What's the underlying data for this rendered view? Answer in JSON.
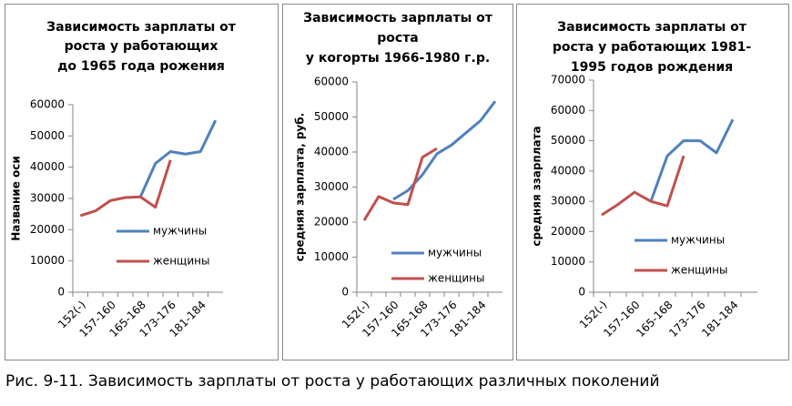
{
  "caption": "Рис. 9-11. Зависимость зарплаты от роста у работающих различных поколений",
  "chart_data": [
    {
      "type": "line",
      "title": [
        "Зависимость зарплаты от",
        "роста у работающих",
        "до 1965 года рожения"
      ],
      "y_label": "Название  оси",
      "categories": [
        "152(-)",
        null,
        "157-160",
        null,
        "165-168",
        null,
        "173-176",
        null,
        "181-184",
        null
      ],
      "series": [
        {
          "name": "мужчины",
          "color": "#4f81bd",
          "values": [
            null,
            null,
            null,
            null,
            30500,
            41200,
            45000,
            44200,
            45000,
            55000
          ]
        },
        {
          "name": "женщины",
          "color": "#c0504d",
          "values": [
            24500,
            26000,
            29300,
            30300,
            30500,
            27200,
            42300,
            null,
            null,
            null
          ]
        }
      ],
      "ylim": [
        0,
        60000
      ],
      "yticks": [
        0,
        10000,
        20000,
        30000,
        40000,
        50000,
        60000
      ],
      "grid": false,
      "legend": "right"
    },
    {
      "type": "line",
      "title": [
        "Зависимость зарплаты от",
        "роста",
        "у когорты 1966-1980 г.р."
      ],
      "y_label": "средняя зарплата, руб.",
      "categories": [
        "152(-)",
        null,
        "157-160",
        null,
        "165-168",
        null,
        "173-176",
        null,
        "181-184",
        null
      ],
      "series": [
        {
          "name": "мужчины",
          "color": "#4f81bd",
          "values": [
            null,
            null,
            26500,
            29000,
            33500,
            39500,
            42000,
            45500,
            49000,
            54500
          ]
        },
        {
          "name": "женщины",
          "color": "#c0504d",
          "values": [
            20500,
            27300,
            25500,
            25000,
            38500,
            41000,
            null,
            null,
            null,
            null
          ]
        }
      ],
      "ylim": [
        0,
        60000
      ],
      "yticks": [
        0,
        10000,
        20000,
        30000,
        40000,
        50000,
        60000
      ],
      "grid": false,
      "legend": "right"
    },
    {
      "type": "line",
      "title": [
        "Зависимость зарплаты от",
        "роста у работающих 1981-",
        "1995 годов рождения"
      ],
      "y_label": "средняя ззарплата",
      "categories": [
        "152(-)",
        null,
        "157-160",
        null,
        "165-168",
        null,
        "173-176",
        null,
        "181-184",
        null
      ],
      "series": [
        {
          "name": "мужчины",
          "color": "#4f81bd",
          "values": [
            null,
            null,
            null,
            30000,
            45000,
            50000,
            50000,
            46000,
            57000,
            null
          ]
        },
        {
          "name": "женщины",
          "color": "#c0504d",
          "values": [
            25500,
            29000,
            33000,
            30000,
            28500,
            45000,
            null,
            null,
            null,
            null
          ]
        }
      ],
      "ylim": [
        0,
        70000
      ],
      "yticks": [
        0,
        10000,
        20000,
        30000,
        40000,
        50000,
        60000,
        70000
      ],
      "grid": false,
      "legend": "right"
    }
  ]
}
